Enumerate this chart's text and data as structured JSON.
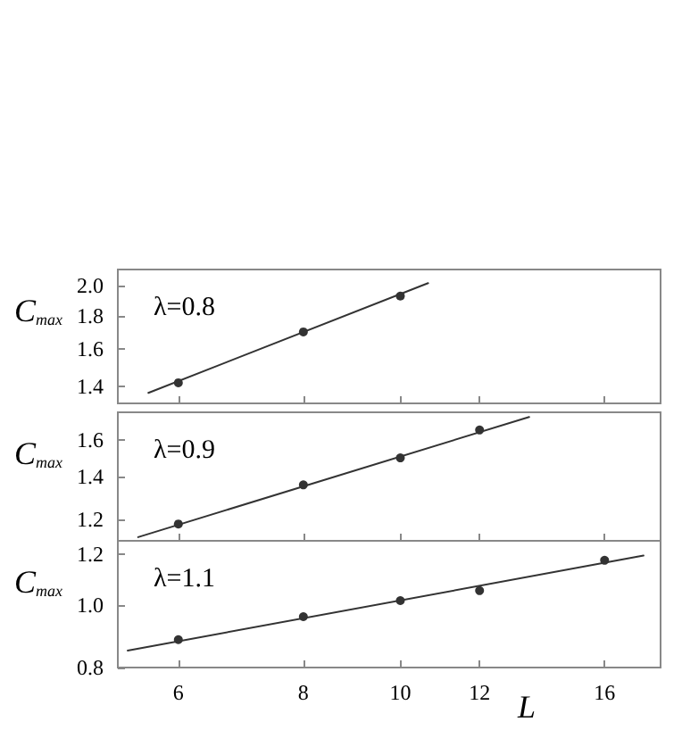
{
  "chart_data": [
    {
      "type": "scatter",
      "ylabel": "C$_{max}$",
      "annotations": [
        "λ=0.8"
      ],
      "log": "xy",
      "marker": "circle",
      "tick_labels": "y",
      "xlim": [
        5.22,
        18.2
      ],
      "xticks": [
        6,
        8,
        10,
        12,
        16
      ],
      "ylim": [
        1.32,
        2.12
      ],
      "yticks": [
        {
          "value": 1.4,
          "label": "1.4"
        },
        {
          "value": 1.6,
          "label": "1.6"
        },
        {
          "value": 1.8,
          "label": "1.8"
        },
        {
          "value": 2,
          "label": "2.0"
        }
      ],
      "series": [
        {
          "color": "#000000",
          "x": [
            6,
            8,
            10
          ],
          "values": [
            1.42,
            1.7,
            1.93
          ]
        },
        {
          "type": "line",
          "color": "#333333",
          "marker": "none",
          "x": [
            5.6,
            10.66
          ],
          "values": [
            1.37,
            2.02
          ]
        }
      ]
    },
    {
      "type": "scatter",
      "ylabel": "C$_{max}$",
      "annotations": [
        "λ=0.9"
      ],
      "log": "xy",
      "marker": "circle",
      "tick_labels": "y",
      "xlim": [
        5.22,
        18.2
      ],
      "xticks": [
        6,
        8,
        10,
        12,
        16
      ],
      "ylim": [
        1.11,
        1.77
      ],
      "yticks": [
        1.2,
        1.4,
        1.6
      ],
      "series": [
        {
          "color": "#000000",
          "x": [
            6,
            8,
            10,
            12
          ],
          "values": [
            1.18,
            1.36,
            1.5,
            1.66
          ]
        },
        {
          "type": "line",
          "color": "#333333",
          "marker": "none",
          "x": [
            5.47,
            13.45
          ],
          "values": [
            1.125,
            1.74
          ]
        }
      ]
    },
    {
      "type": "scatter",
      "ylabel": "C$_{max}$",
      "xlabel": "L",
      "annotations": [
        "λ=1.1"
      ],
      "log": "xy",
      "marker": "circle",
      "xlim": [
        5.22,
        18.2
      ],
      "xticks": [
        6,
        8,
        10,
        12,
        16
      ],
      "ylim": [
        0.8,
        1.26
      ],
      "yticks": [
        0.8,
        1.2,
        {
          "value": 1,
          "label": "1.0"
        }
      ],
      "series": [
        {
          "color": "#000000",
          "x": [
            6,
            8,
            10,
            12,
            16
          ],
          "values": [
            0.884,
            0.96,
            1.017,
            1.054,
            1.175
          ]
        },
        {
          "type": "line",
          "color": "#333333",
          "marker": "none",
          "x": [
            5.34,
            17.5
          ],
          "values": [
            0.85,
            1.195
          ]
        }
      ]
    }
  ]
}
